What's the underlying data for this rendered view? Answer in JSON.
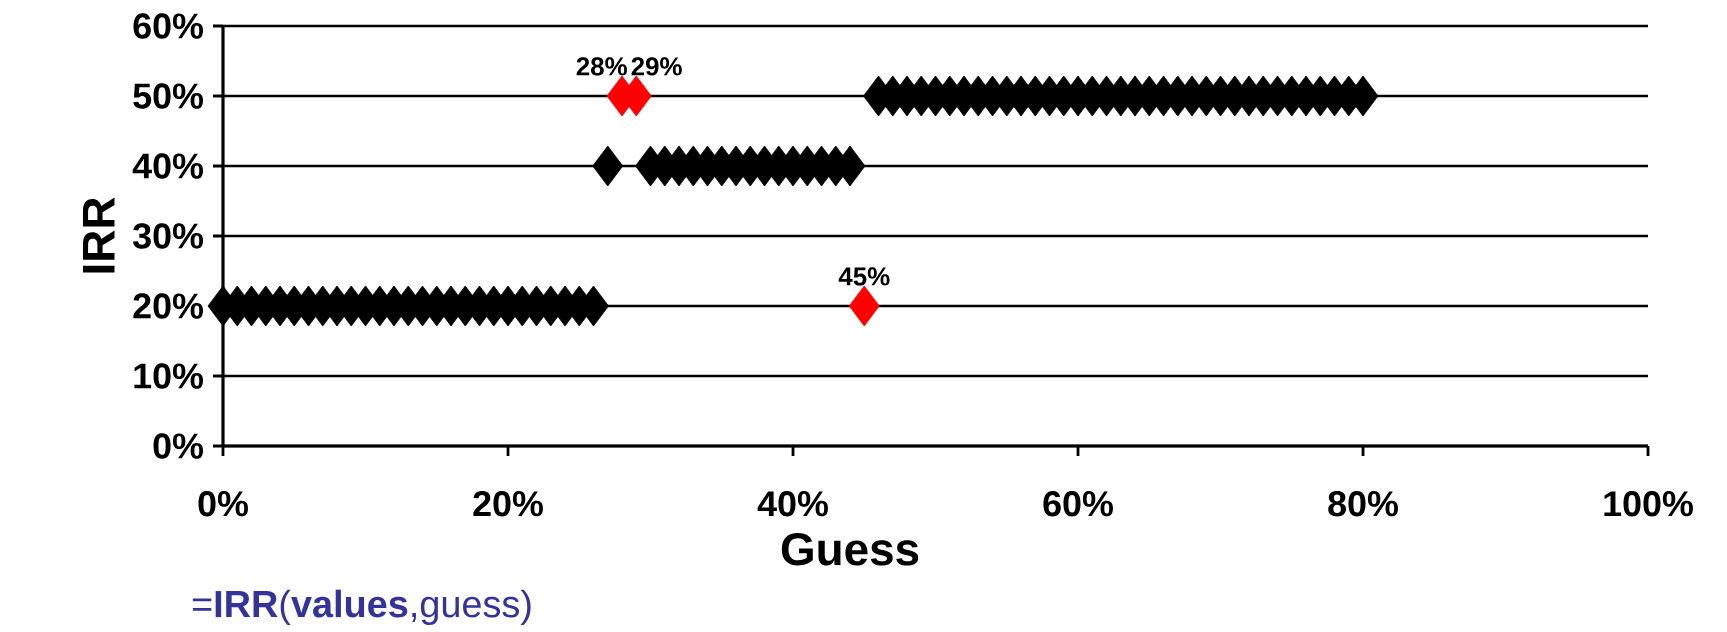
{
  "chart_data": {
    "type": "scatter",
    "xlabel": "Guess",
    "ylabel": "IRR",
    "marker": "diamond",
    "grid": "y",
    "xlim": [
      0,
      100
    ],
    "ylim": [
      0,
      60
    ],
    "xticks": [
      {
        "value": 0,
        "label": "0%"
      },
      {
        "value": 20,
        "label": "20%"
      },
      {
        "value": 40,
        "label": "40%"
      },
      {
        "value": 60,
        "label": "60%"
      },
      {
        "value": 80,
        "label": "80%"
      },
      {
        "value": 100,
        "label": "100%"
      }
    ],
    "yticks": [
      {
        "value": 0,
        "label": "0%"
      },
      {
        "value": 10,
        "label": "10%"
      },
      {
        "value": 20,
        "label": "20%"
      },
      {
        "value": 30,
        "label": "30%"
      },
      {
        "value": 40,
        "label": "40%"
      },
      {
        "value": 50,
        "label": "50%"
      },
      {
        "value": 60,
        "label": "60%"
      }
    ],
    "series": [
      {
        "color": "#000000",
        "x": [
          0,
          1,
          2,
          3,
          4,
          5,
          6,
          7,
          8,
          9,
          10,
          11,
          12,
          13,
          14,
          15,
          16,
          17,
          18,
          19,
          20,
          21,
          22,
          23,
          24,
          25,
          26,
          27,
          30,
          31,
          32,
          33,
          34,
          35,
          36,
          37,
          38,
          39,
          40,
          41,
          42,
          43,
          44,
          46,
          47,
          48,
          49,
          50,
          51,
          52,
          53,
          54,
          55,
          56,
          57,
          58,
          59,
          60,
          61,
          62,
          63,
          64,
          65,
          66,
          67,
          68,
          69,
          70,
          71,
          72,
          73,
          74,
          75,
          76,
          77,
          78,
          79,
          80
        ],
        "values": [
          20,
          20,
          20,
          20,
          20,
          20,
          20,
          20,
          20,
          20,
          20,
          20,
          20,
          20,
          20,
          20,
          20,
          20,
          20,
          20,
          20,
          20,
          20,
          20,
          20,
          20,
          20,
          40,
          40,
          40,
          40,
          40,
          40,
          40,
          40,
          40,
          40,
          40,
          40,
          40,
          40,
          40,
          40,
          50,
          50,
          50,
          50,
          50,
          50,
          50,
          50,
          50,
          50,
          50,
          50,
          50,
          50,
          50,
          50,
          50,
          50,
          50,
          50,
          50,
          50,
          50,
          50,
          50,
          50,
          50,
          50,
          50,
          50,
          50,
          50,
          50,
          50,
          50
        ]
      },
      {
        "color": "#ff0000",
        "x": [
          28,
          29,
          45
        ],
        "values": [
          50,
          50,
          20
        ]
      }
    ],
    "annotations": [
      {
        "text": "28%",
        "x": 28,
        "y": 50
      },
      {
        "text": "29%",
        "x": 29,
        "y": 50
      },
      {
        "text": "45%",
        "x": 45,
        "y": 20
      },
      "=**IRR**(**values**,guess)"
    ]
  }
}
